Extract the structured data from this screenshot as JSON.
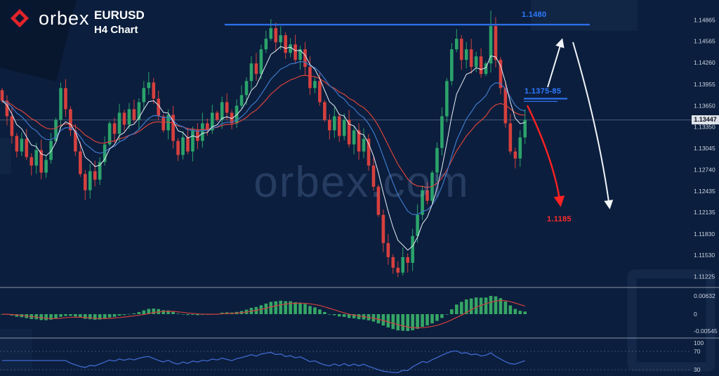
{
  "header": {
    "brand": "orbex",
    "symbol": "EURUSD",
    "timeframe": "H4 Chart"
  },
  "watermark": "orbex.com",
  "annotations": {
    "resistance_label": "1.1480",
    "support_label": "1.1375-85",
    "target_label": "1.1185"
  },
  "price_axis": {
    "current": "1.13447",
    "ticks": [
      "1.14865",
      "1.14565",
      "1.14260",
      "1.13955",
      "1.13650",
      "1.13350",
      "1.13045",
      "1.12740",
      "1.12435",
      "1.12135",
      "1.11830",
      "1.11530",
      "1.11225"
    ]
  },
  "macd_axis": {
    "ticks": [
      "0.00632",
      "0",
      "-0.00545"
    ]
  },
  "rsi_axis": {
    "ticks": [
      "100",
      "70",
      "30"
    ]
  },
  "colors": {
    "background": "#0b1e3d",
    "bull": "#2ba36b",
    "bear": "#d6403e",
    "ma_fast": "#e9eef6",
    "ma_mid": "#3f78c9",
    "ma_slow": "#d8433c",
    "level_blue": "#2e6fe8",
    "label_blue": "#2f7bff",
    "arrow_red": "#ff2222",
    "arrow_white": "#f2f5fa",
    "macd_bar": "#35a665",
    "macd_signal": "#d2403c",
    "rsi_line": "#4169d0"
  },
  "chart_data": {
    "type": "candlestick",
    "symbol": "EURUSD",
    "timeframe": "H4",
    "title": "EURUSD H4 Chart",
    "price_range": [
      1.1108,
      1.1515
    ],
    "closes": [
      1.1372,
      1.135,
      1.1322,
      1.13,
      1.1318,
      1.1292,
      1.128,
      1.1302,
      1.127,
      1.1288,
      1.1315,
      1.1345,
      1.139,
      1.136,
      1.133,
      1.13,
      1.1268,
      1.1245,
      1.1272,
      1.126,
      1.1285,
      1.131,
      1.134,
      1.1325,
      1.1355,
      1.1338,
      1.136,
      1.1345,
      1.137,
      1.139,
      1.1398,
      1.1375,
      1.135,
      1.133,
      1.1352,
      1.1315,
      1.1295,
      1.132,
      1.13,
      1.133,
      1.1315,
      1.134,
      1.133,
      1.1355,
      1.1345,
      1.137,
      1.1355,
      1.134,
      1.1365,
      1.138,
      1.14,
      1.1425,
      1.141,
      1.1445,
      1.146,
      1.1475,
      1.1455,
      1.1465,
      1.144,
      1.1452,
      1.143,
      1.1445,
      1.142,
      1.139,
      1.14,
      1.137,
      1.1345,
      1.133,
      1.135,
      1.1322,
      1.1345,
      1.131,
      1.133,
      1.13,
      1.1318,
      1.128,
      1.125,
      1.121,
      1.117,
      1.115,
      1.1135,
      1.1128,
      1.115,
      1.1142,
      1.118,
      1.121,
      1.1245,
      1.123,
      1.127,
      1.1305,
      1.135,
      1.14,
      1.1445,
      1.146,
      1.143,
      1.1445,
      1.142,
      1.1435,
      1.141,
      1.1425,
      1.1478,
      1.143,
      1.139,
      1.134,
      1.13,
      1.129,
      1.132,
      1.1345
    ],
    "spike_highs": {
      "55": 1.1488,
      "100": 1.15
    },
    "levels": {
      "resistance": 1.148,
      "support_zone": [
        1.1375,
        1.1385
      ],
      "target": 1.1185,
      "current_price": 1.13447
    },
    "indicators": {
      "ma_periods": [
        6,
        14,
        24
      ],
      "macd": {
        "fast": 12,
        "slow": 26,
        "signal": 9
      },
      "rsi": {
        "period": 14
      }
    }
  }
}
